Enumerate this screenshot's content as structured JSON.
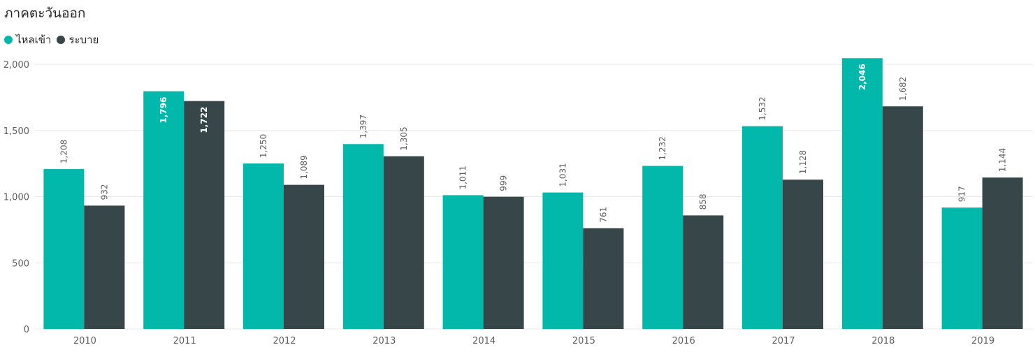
{
  "chart_data": {
    "type": "bar",
    "title": "ภาคตะวันออก",
    "categories": [
      "2010",
      "2011",
      "2012",
      "2013",
      "2014",
      "2015",
      "2016",
      "2017",
      "2018",
      "2019"
    ],
    "series": [
      {
        "name": "ไหลเข้า",
        "color": "#01b8aa",
        "values": [
          1208,
          1796,
          1250,
          1397,
          1011,
          1031,
          1232,
          1532,
          2046,
          917
        ]
      },
      {
        "name": "ระบาย",
        "color": "#374649",
        "values": [
          932,
          1722,
          1089,
          1305,
          999,
          761,
          858,
          1128,
          1682,
          1144
        ]
      }
    ],
    "ylim": [
      0,
      2000
    ],
    "yticks": [
      0,
      500,
      1000,
      1500,
      2000
    ],
    "ytick_labels": [
      "0",
      "500",
      "1,000",
      "1,500",
      "2,000"
    ],
    "data_labels": [
      [
        "1,208",
        "1,796",
        "1,250",
        "1,397",
        "1,011",
        "1,031",
        "1,232",
        "1,532",
        "2,046",
        "917"
      ],
      [
        "932",
        "1,722",
        "1,089",
        "1,305",
        "999",
        "761",
        "858",
        "1,128",
        "1,682",
        "1,144"
      ]
    ],
    "legend_position": "top-left",
    "grid": true
  }
}
